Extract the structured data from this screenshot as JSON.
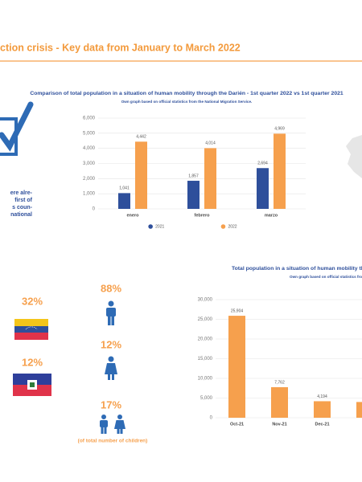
{
  "header": {
    "title": "ction crisis - Key data from January to March 2022"
  },
  "side_text": [
    "ere alre-",
    "first of",
    "s coun-",
    "national"
  ],
  "stats": {
    "nationality": [
      "32%",
      "12%"
    ],
    "people": [
      "88%",
      "12%",
      "17%"
    ],
    "children_note": "(of total number of children)"
  },
  "chart_data": [
    {
      "type": "bar",
      "title": "Comparison of total population in a situation of human mobility through the Darién - 1st quarter 2022 vs 1st quarter 2021",
      "subtitle": "Own graph based on official statistics from the National Migration Service.",
      "categories": [
        "enero",
        "febrero",
        "marzo"
      ],
      "series": [
        {
          "name": "2021",
          "color": "#2e4f9b",
          "values": [
            1041,
            1857,
            2694
          ],
          "value_labels": [
            "1,041",
            "1,857",
            "2,694"
          ]
        },
        {
          "name": "2022",
          "color": "#f6a04d",
          "values": [
            4442,
            4014,
            4969
          ],
          "value_labels": [
            "4,442",
            "4,014",
            "4,969"
          ]
        }
      ],
      "ylim": [
        0,
        6000
      ],
      "yticks": [
        0,
        {
          "value": 1000,
          "label": "1,000"
        },
        {
          "value": 2000,
          "label": "2,000"
        },
        {
          "value": 3000,
          "label": "3,000"
        },
        {
          "value": 4000,
          "label": "4,000"
        },
        {
          "value": 5000,
          "label": "5,000"
        },
        {
          "value": 6000,
          "label": "6,000"
        }
      ],
      "grid": true,
      "legend": "bottom"
    },
    {
      "type": "bar",
      "title": "Total population in a situation of human mobility throug",
      "subtitle": "Own graph based on official statistics from",
      "categories": [
        "Oct-21",
        "Nov-21",
        "Dec-21",
        null
      ],
      "values": [
        25904,
        7762,
        4194,
        4000
      ],
      "value_labels": [
        "25,904",
        "7,762",
        "4,194",
        null
      ],
      "color": "#f6a04d",
      "ylim": [
        0,
        30000
      ],
      "yticks": [
        0,
        {
          "value": 5000,
          "label": "5,000"
        },
        {
          "value": 10000,
          "label": "10,000"
        },
        {
          "value": 15000,
          "label": "15,000"
        },
        {
          "value": 20000,
          "label": "20,000"
        },
        {
          "value": 25000,
          "label": "25,000"
        },
        {
          "value": 30000,
          "label": "30,000"
        }
      ],
      "grid": true
    }
  ]
}
